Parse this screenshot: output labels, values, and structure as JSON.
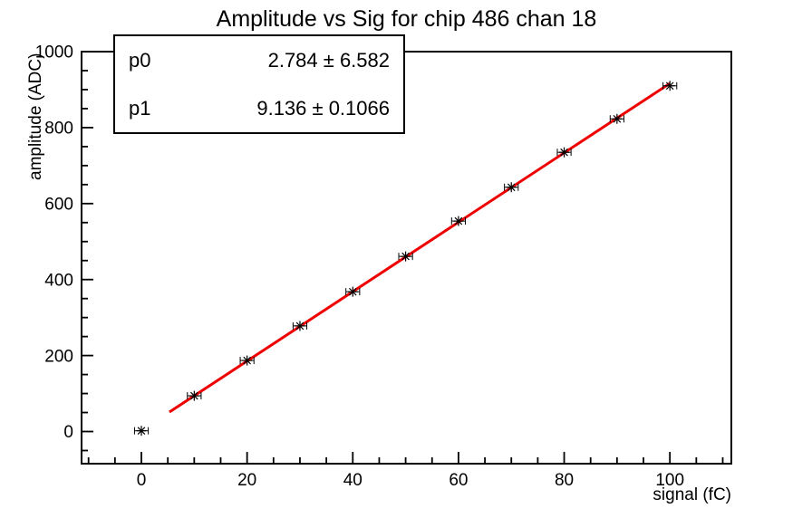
{
  "title": "Amplitude vs Sig for chip 486 chan 18",
  "stats_box": {
    "rows": [
      {
        "param": "p0",
        "value": "2.784 ± 6.582"
      },
      {
        "param": "p1",
        "value": "9.136 ± 0.1066"
      }
    ]
  },
  "chart_data": {
    "type": "scatter",
    "title": "Amplitude vs Sig for chip 486 chan 18",
    "xlabel": "signal (fC)",
    "ylabel": "amplitude (ADC)",
    "xlim": [
      -11.32,
      111.63
    ],
    "ylim": [
      -84.6,
      1000
    ],
    "x_ticks_major": [
      0,
      20,
      40,
      60,
      80,
      100
    ],
    "x_minor_step": 5,
    "y_ticks_major": [
      0,
      200,
      400,
      600,
      800,
      1000
    ],
    "y_minor_step": 50,
    "grid": false,
    "legend": null,
    "axis_color": "#000000",
    "series": [
      {
        "name": "measured amplitudes",
        "marker": "star",
        "color": "#000000",
        "x": [
          0,
          10,
          20,
          30,
          40,
          50,
          60,
          70,
          80,
          90,
          100
        ],
        "y": [
          2,
          94,
          187,
          278,
          368,
          461,
          554,
          643,
          735,
          823,
          910
        ],
        "xerr": 1.3
      }
    ],
    "fit": {
      "name": "linear fit",
      "color": "#ee0000",
      "p0": 2.784,
      "p0_err": 6.582,
      "p1": 9.136,
      "p1_err": 0.1066,
      "x_range": [
        5.3,
        100
      ]
    }
  }
}
